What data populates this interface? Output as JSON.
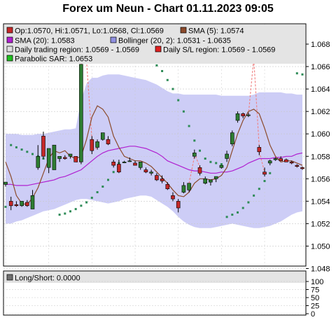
{
  "title": "Forex um Neun - Chart 01.11.2023 09:05",
  "legend": {
    "ohlc": "Op:1.0570, Hi:1.0571, Lo:1.0568, Cl:1.0569",
    "sma5": "SMA (5): 1.0574",
    "sma20": "SMA (20): 1.0583",
    "bollinger": "Bollinger (20, 2): 1.0531 - 1.0635",
    "daily_range": "Daily trading region: 1.0569 - 1.0569",
    "daily_sl": "Daily S/L region: 1.0569 - 1.0569",
    "psar": "Parabolic SAR: 1.0653"
  },
  "lower_panel": {
    "legend": "Long/Short: 0.0000",
    "ticks": [
      "100",
      "75",
      "50",
      "25",
      "0"
    ]
  },
  "colors": {
    "bull": "#2e7d32",
    "bear": "#c62828",
    "sma5": "#8b4a2b",
    "sma20": "#b020d0",
    "bollinger_fill": "#c8c8f5",
    "psar": "#2e8b57",
    "sl_line": "#f08080",
    "grid": "#c8c8c8",
    "legend_bg": "#e4e4e4"
  },
  "chart_data": [
    {
      "type": "candlestick",
      "y_ticks": [
        "1.048",
        "1.050",
        "1.052",
        "1.054",
        "1.056",
        "1.058",
        "1.060",
        "1.062",
        "1.064",
        "1.066",
        "1.068"
      ],
      "ylim": [
        1.048,
        1.069
      ],
      "candles": [
        {
          "o": 1.0555,
          "h": 1.0557,
          "l": 1.0553,
          "c": 1.0557
        },
        {
          "o": 1.054,
          "h": 1.0544,
          "l": 1.0532,
          "c": 1.0536
        },
        {
          "o": 1.0537,
          "h": 1.054,
          "l": 1.0535,
          "c": 1.0536
        },
        {
          "o": 1.0536,
          "h": 1.054,
          "l": 1.0535,
          "c": 1.054
        },
        {
          "o": 1.0539,
          "h": 1.0541,
          "l": 1.0535,
          "c": 1.0536
        },
        {
          "o": 1.0533,
          "h": 1.055,
          "l": 1.0533,
          "c": 1.0545
        },
        {
          "o": 1.057,
          "h": 1.059,
          "l": 1.0568,
          "c": 1.058
        },
        {
          "o": 1.0598,
          "h": 1.0602,
          "l": 1.0578,
          "c": 1.058
        },
        {
          "o": 1.057,
          "h": 1.0587,
          "l": 1.0565,
          "c": 1.0587
        },
        {
          "o": 1.0568,
          "h": 1.059,
          "l": 1.0568,
          "c": 1.059
        },
        {
          "o": 1.0578,
          "h": 1.058,
          "l": 1.0575,
          "c": 1.058
        },
        {
          "o": 1.0579,
          "h": 1.0581,
          "l": 1.0577,
          "c": 1.0578
        },
        {
          "o": 1.058,
          "h": 1.0582,
          "l": 1.0578,
          "c": 1.0582
        },
        {
          "o": 1.058,
          "h": 1.058,
          "l": 1.0575,
          "c": 1.0575
        },
        {
          "o": 1.0575,
          "h": 1.0662,
          "l": 1.0573,
          "c": 1.0662
        },
        {
          "o": 1.068,
          "h": 1.0682,
          "l": 1.0665,
          "c": 1.0665
        },
        {
          "o": 1.0595,
          "h": 1.0598,
          "l": 1.0582,
          "c": 1.0585
        },
        {
          "o": 1.0588,
          "h": 1.0595,
          "l": 1.0586,
          "c": 1.0593
        },
        {
          "o": 1.0595,
          "h": 1.0601,
          "l": 1.0594,
          "c": 1.0601
        },
        {
          "o": 1.0595,
          "h": 1.0598,
          "l": 1.059,
          "c": 1.0591
        },
        {
          "o": 1.0575,
          "h": 1.0577,
          "l": 1.057,
          "c": 1.0572
        },
        {
          "o": 1.0573,
          "h": 1.0577,
          "l": 1.0565,
          "c": 1.0566
        },
        {
          "o": 1.0575,
          "h": 1.0576,
          "l": 1.0574,
          "c": 1.0575
        },
        {
          "o": 1.0576,
          "h": 1.0579,
          "l": 1.0575,
          "c": 1.0576
        },
        {
          "o": 1.0574,
          "h": 1.0576,
          "l": 1.0572,
          "c": 1.0572
        },
        {
          "o": 1.057,
          "h": 1.0575,
          "l": 1.0568,
          "c": 1.0575
        },
        {
          "o": 1.0568,
          "h": 1.057,
          "l": 1.0565,
          "c": 1.0566
        },
        {
          "o": 1.0565,
          "h": 1.0568,
          "l": 1.0563,
          "c": 1.0566
        },
        {
          "o": 1.0563,
          "h": 1.0565,
          "l": 1.0558,
          "c": 1.0559
        },
        {
          "o": 1.056,
          "h": 1.0563,
          "l": 1.0556,
          "c": 1.0558
        },
        {
          "o": 1.0555,
          "h": 1.0557,
          "l": 1.055,
          "c": 1.0551
        },
        {
          "o": 1.0545,
          "h": 1.0548,
          "l": 1.054,
          "c": 1.0542
        },
        {
          "o": 1.054,
          "h": 1.0542,
          "l": 1.053,
          "c": 1.0534
        },
        {
          "o": 1.0548,
          "h": 1.0557,
          "l": 1.0547,
          "c": 1.0554
        },
        {
          "o": 1.055,
          "h": 1.0556,
          "l": 1.0548,
          "c": 1.0556
        },
        {
          "o": 1.058,
          "h": 1.0586,
          "l": 1.0578,
          "c": 1.0583
        },
        {
          "o": 1.057,
          "h": 1.0572,
          "l": 1.0563,
          "c": 1.0565
        },
        {
          "o": 1.0556,
          "h": 1.0562,
          "l": 1.0555,
          "c": 1.056
        },
        {
          "o": 1.0557,
          "h": 1.0559,
          "l": 1.0554,
          "c": 1.0559
        },
        {
          "o": 1.056,
          "h": 1.0562,
          "l": 1.0557,
          "c": 1.0562
        },
        {
          "o": 1.057,
          "h": 1.0572,
          "l": 1.0569,
          "c": 1.0572
        },
        {
          "o": 1.0578,
          "h": 1.0585,
          "l": 1.0575,
          "c": 1.0582
        },
        {
          "o": 1.0591,
          "h": 1.0603,
          "l": 1.0589,
          "c": 1.0601
        },
        {
          "o": 1.0612,
          "h": 1.062,
          "l": 1.061,
          "c": 1.0618
        },
        {
          "o": 1.0618,
          "h": 1.0619,
          "l": 1.0614,
          "c": 1.0616
        },
        {
          "o": 1.0617,
          "h": 1.0619,
          "l": 1.0615,
          "c": 1.0617
        },
        {
          "o": 1.0668,
          "h": 1.067,
          "l": 1.0664,
          "c": 1.0666
        },
        {
          "o": 1.0588,
          "h": 1.059,
          "l": 1.0581,
          "c": 1.0584
        },
        {
          "o": 1.0566,
          "h": 1.057,
          "l": 1.0562,
          "c": 1.0564
        },
        {
          "o": 1.0574,
          "h": 1.0577,
          "l": 1.0572,
          "c": 1.0576
        },
        {
          "o": 1.0577,
          "h": 1.0579,
          "l": 1.0576,
          "c": 1.0578
        },
        {
          "o": 1.0578,
          "h": 1.058,
          "l": 1.0576,
          "c": 1.0576
        },
        {
          "o": 1.0577,
          "h": 1.0578,
          "l": 1.0575,
          "c": 1.0575
        },
        {
          "o": 1.0575,
          "h": 1.0576,
          "l": 1.0573,
          "c": 1.0574
        },
        {
          "o": 1.0572,
          "h": 1.0573,
          "l": 1.057,
          "c": 1.0571
        },
        {
          "o": 1.057,
          "h": 1.0571,
          "l": 1.0568,
          "c": 1.0569
        }
      ],
      "sma5": [
        1.0575,
        1.0562,
        1.0545,
        1.0538,
        1.0537,
        1.0543,
        1.0552,
        1.0565,
        1.0578,
        1.0585,
        1.0583,
        1.0585,
        1.058,
        1.0578,
        1.058,
        1.0595,
        1.0615,
        1.0625,
        1.0622,
        1.0615,
        1.0598,
        1.0588,
        1.058,
        1.0578,
        1.0576,
        1.0576,
        1.0574,
        1.0571,
        1.0566,
        1.0561,
        1.0556,
        1.055,
        1.0545,
        1.0544,
        1.0548,
        1.0556,
        1.056,
        1.056,
        1.0559,
        1.056,
        1.0563,
        1.057,
        1.0585,
        1.06,
        1.0612,
        1.062,
        1.0622,
        1.0618,
        1.0605,
        1.059,
        1.058,
        1.0575,
        1.0576,
        1.0576,
        1.0574,
        1.0572
      ],
      "sma20": [
        1.0555,
        1.0555,
        1.0554,
        1.0554,
        1.0554,
        1.0555,
        1.0556,
        1.0557,
        1.0558,
        1.0559,
        1.0561,
        1.0562,
        1.0564,
        1.0566,
        1.0568,
        1.0572,
        1.0576,
        1.058,
        1.0583,
        1.0585,
        1.0586,
        1.0587,
        1.0588,
        1.0589,
        1.0589,
        1.0588,
        1.0587,
        1.0585,
        1.0583,
        1.058,
        1.0576,
        1.0574,
        1.0572,
        1.057,
        1.0568,
        1.0567,
        1.0567,
        1.0566,
        1.0565,
        1.0565,
        1.0566,
        1.0566,
        1.0567,
        1.0569,
        1.0571,
        1.0574,
        1.0576,
        1.0578,
        1.0578,
        1.0578,
        1.0579,
        1.0579,
        1.058,
        1.058,
        1.0582,
        1.0583
      ],
      "bb_upper": [
        1.06,
        1.06,
        1.06,
        1.0599,
        1.0599,
        1.0599,
        1.06,
        1.06,
        1.0601,
        1.0602,
        1.0603,
        1.0604,
        1.0604,
        1.0605,
        1.063,
        1.0645,
        1.065,
        1.065,
        1.0652,
        1.0653,
        1.0653,
        1.0653,
        1.0652,
        1.0651,
        1.065,
        1.0649,
        1.0648,
        1.0646,
        1.0644,
        1.0641,
        1.0638,
        1.0636,
        1.0636,
        1.0635,
        1.0635,
        1.0635,
        1.0635,
        1.0635,
        1.0635,
        1.0635,
        1.0634,
        1.0634,
        1.0634,
        1.0634,
        1.0634,
        1.0634,
        1.0635,
        1.0637,
        1.0637,
        1.0637,
        1.0637,
        1.0637,
        1.0636,
        1.0636,
        1.0635,
        1.0635
      ],
      "bb_lower": [
        1.052,
        1.052,
        1.0522,
        1.0523,
        1.0525,
        1.0527,
        1.0529,
        1.0531,
        1.0532,
        1.0533,
        1.0535,
        1.0537,
        1.0539,
        1.0541,
        1.0542,
        1.0542,
        1.0541,
        1.054,
        1.0539,
        1.0538,
        1.0539,
        1.054,
        1.0542,
        1.0543,
        1.0544,
        1.0545,
        1.0545,
        1.0544,
        1.0541,
        1.0538,
        1.0535,
        1.0531,
        1.0526,
        1.0522,
        1.0519,
        1.0517,
        1.0516,
        1.0516,
        1.0516,
        1.0517,
        1.0518,
        1.0519,
        1.052,
        1.0519,
        1.0518,
        1.0517,
        1.0516,
        1.0516,
        1.0517,
        1.0518,
        1.052,
        1.0522,
        1.0525,
        1.0528,
        1.053,
        1.0531
      ],
      "psar": [
        1.0535,
        1.059,
        1.0588,
        1.0586,
        1.0584,
        1.0582,
        1.058,
        1.0578,
        1.0576,
        1.0574,
        1.0528,
        1.0529,
        1.0531,
        1.0533,
        1.0536,
        1.0539,
        1.0543,
        1.0548,
        1.0553,
        1.0559,
        1.0566,
        1.0574,
        1.068,
        1.0678,
        1.0675,
        1.0672,
        1.0669,
        1.0665,
        1.0661,
        1.0656,
        1.0648,
        1.064,
        1.063,
        1.062,
        1.0607,
        1.0594,
        1.0585,
        1.0578,
        1.0575,
        1.0574,
        1.0573,
        1.0526,
        1.0528,
        1.053,
        1.0534,
        1.0539,
        1.0545,
        1.0551,
        1.0558,
        1.0565,
        1.0669,
        1.0668,
        1.0667,
        1.0665,
        1.0654,
        1.0653
      ],
      "sl_range": [
        13,
        14,
        15,
        16,
        34,
        35,
        44,
        45,
        46,
        47
      ]
    },
    {
      "type": "line",
      "y_ticks": [
        "100",
        "75",
        "50",
        "25",
        "0"
      ],
      "ylim": [
        0,
        100
      ],
      "values": [
        50
      ]
    }
  ]
}
